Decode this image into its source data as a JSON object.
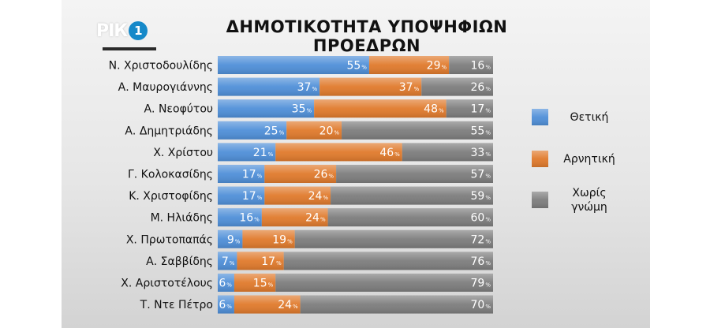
{
  "logo": {
    "text": "РІК",
    "badge": "1"
  },
  "chart_data": {
    "type": "bar",
    "orientation": "horizontal",
    "stacked": true,
    "title": "ΔΗΜΟΤΙΚΟΤΗΤΑ ΥΠΟΨΗΦΙΩΝ ΠΡΟΕΔΡΩΝ",
    "unit_suffix": "%",
    "xlim": [
      0,
      100
    ],
    "legend_position": "right",
    "categories": [
      "Ν. Χριστοδουλίδης",
      "Α. Μαυρογιάννης",
      "Α. Νεοφύτου",
      "Α. Δημητριάδης",
      "Χ. Χρίστου",
      "Γ. Κολοκασίδης",
      "Κ. Χριστοφίδης",
      "Μ. Ηλιάδης",
      "Χ. Πρωτοπαπάς",
      "Α. Σαββίδης",
      "Χ. Αριστοτέλους",
      "Τ. Ντε Πέτρο"
    ],
    "series": [
      {
        "name": "Θετική",
        "color": "#4f8fd8",
        "values": [
          55,
          37,
          35,
          25,
          21,
          17,
          17,
          16,
          9,
          7,
          6,
          6
        ]
      },
      {
        "name": "Αρνητική",
        "color": "#e07a2c",
        "values": [
          29,
          37,
          48,
          20,
          46,
          26,
          24,
          24,
          19,
          17,
          15,
          24
        ]
      },
      {
        "name": "Χωρίς γνώμη",
        "color": "#7d7d7d",
        "values": [
          16,
          26,
          17,
          55,
          33,
          57,
          59,
          60,
          72,
          76,
          79,
          70
        ]
      }
    ]
  }
}
